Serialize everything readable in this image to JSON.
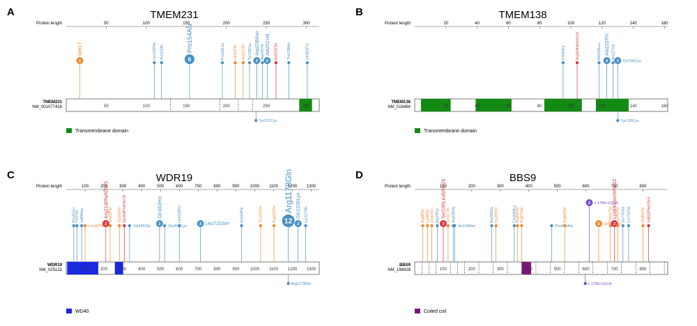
{
  "colors": {
    "missense": "#4a90c4",
    "truncating": "#f08a30",
    "frameshift": "#d9363e",
    "splice": "#7a4cc9",
    "transmembrane": "#138a13",
    "wd40": "#1a28e0",
    "coiled": "#7b1877"
  },
  "panels": [
    {
      "id": "A",
      "letter": "A",
      "title": "TMEM231",
      "axis_label": "Protein length",
      "gene": "TMEM231",
      "transcript": "NM_001077416",
      "length": 316,
      "ticks": [
        50,
        100,
        150,
        200,
        250,
        300
      ],
      "dividers": [
        130,
        192,
        215,
        233
      ],
      "domains": [
        {
          "start": 291,
          "end": 307,
          "type": "transmembrane"
        }
      ],
      "legend": "Transmembrane domain",
      "legend_type": "transmembrane",
      "top": [
        {
          "pos": 17,
          "label": "Met1?",
          "type": "truncating",
          "count": 2
        },
        {
          "pos": 110,
          "label": "Leu110Phe",
          "type": "missense"
        },
        {
          "pos": 119,
          "label": "Asn119Ile",
          "type": "missense"
        },
        {
          "pos": 154,
          "label": "Pro154Ala",
          "type": "missense",
          "count": 6
        },
        {
          "pos": 195,
          "label": "Pro195Leu",
          "type": "missense"
        },
        {
          "pos": 211,
          "label": "Gln211Ter",
          "type": "truncating"
        },
        {
          "pos": 221,
          "label": "Arg221Ter",
          "type": "truncating"
        },
        {
          "pos": 229,
          "label": "Tyr229Cys",
          "type": "missense"
        },
        {
          "pos": 238,
          "label": "Asp238Asn",
          "type": "missense",
          "count": 3
        },
        {
          "pos": 245,
          "label": "Ala245Thr",
          "type": "missense"
        },
        {
          "pos": 251,
          "label": "Ala251Val",
          "type": "missense",
          "count": 2
        },
        {
          "pos": 262,
          "label": "Ile262fsTer",
          "type": "frameshift"
        },
        {
          "pos": 278,
          "label": "Thr278Met",
          "type": "missense"
        },
        {
          "pos": 301,
          "label": "Gln301Pro",
          "type": "missense"
        }
      ],
      "bottom": [
        {
          "pos": 237,
          "label": "Tyr237Cys",
          "type": "missense"
        }
      ]
    },
    {
      "id": "B",
      "letter": "B",
      "title": "TMEM138",
      "axis_label": "Protein length",
      "gene": "TMEM138",
      "transcript": "NM_016464",
      "length": 162,
      "ticks": [
        20,
        40,
        60,
        80,
        100,
        120,
        140,
        160
      ],
      "dividers": [],
      "domains": [
        {
          "start": 4,
          "end": 23,
          "type": "transmembrane"
        },
        {
          "start": 39,
          "end": 62,
          "type": "transmembrane"
        },
        {
          "start": 83,
          "end": 107,
          "type": "transmembrane"
        },
        {
          "start": 116,
          "end": 137,
          "type": "transmembrane"
        }
      ],
      "legend": "Transmembrane domain",
      "legend_type": "transmembrane",
      "top": [
        {
          "pos": 95,
          "label": "His96Arg",
          "type": "missense"
        },
        {
          "pos": 104,
          "label": "Arg104HisfsTer23",
          "type": "frameshift"
        },
        {
          "pos": 118,
          "label": "Met118Leu",
          "type": "missense"
        },
        {
          "pos": 123,
          "label": "Ala123Thr",
          "type": "missense",
          "count": 3
        },
        {
          "pos": 127,
          "label": "Ala127Val",
          "type": "missense"
        },
        {
          "pos": 130,
          "label": "Tyr130Cys",
          "type": "missense",
          "count": 2,
          "side": true
        }
      ],
      "bottom": [
        {
          "pos": 130,
          "label": "Tyr130Cys",
          "type": "missense"
        }
      ]
    },
    {
      "id": "C",
      "letter": "C",
      "title": "WDR19",
      "axis_label": "Protein length",
      "gene": "WDR19",
      "transcript": "NM_025132",
      "length": 1342,
      "ticks": [
        100,
        200,
        300,
        400,
        500,
        600,
        700,
        800,
        900,
        1000,
        1100,
        1200,
        1300
      ],
      "dividers": [],
      "domains": [
        {
          "start": 5,
          "end": 170,
          "type": "wd40"
        },
        {
          "start": 258,
          "end": 302,
          "type": "wd40"
        }
      ],
      "legend": "WD40",
      "legend_type": "wd40",
      "top": [
        {
          "pos": 40,
          "label": "Phe45Ser",
          "type": "missense"
        },
        {
          "pos": 57,
          "label": "Thr57Ile",
          "type": "missense"
        },
        {
          "pos": 82,
          "label": "Val88Asp",
          "type": "missense"
        },
        {
          "pos": 100,
          "label": "Leu82Ter",
          "type": "truncating",
          "side": true
        },
        {
          "pos": 210,
          "label": "Arg214PhefsTer5",
          "type": "frameshift",
          "count": 2
        },
        {
          "pos": 233,
          "label": "Gln233Ter",
          "type": "truncating"
        },
        {
          "pos": 282,
          "label": "Glu282Ter",
          "type": "truncating"
        },
        {
          "pos": 308,
          "label": "Ser308ProfsTer16",
          "type": "frameshift"
        },
        {
          "pos": 336,
          "label": "Val345Gly",
          "type": "missense",
          "side": true
        },
        {
          "pos": 495,
          "label": "Gln493His",
          "type": "missense",
          "count": 2
        },
        {
          "pos": 522,
          "label": "Gly495Cys",
          "type": "missense",
          "side": true
        },
        {
          "pos": 600,
          "label": "Leu619Pro",
          "type": "missense"
        },
        {
          "pos": 712,
          "label": "Leu710Ser",
          "type": "missense",
          "count": 3,
          "side": true
        },
        {
          "pos": 930,
          "label": "Ile935Phe",
          "type": "missense"
        },
        {
          "pos": 1031,
          "label": "Tyr1031Ter",
          "type": "truncating"
        },
        {
          "pos": 1102,
          "label": "Arg1102Ter",
          "type": "truncating"
        },
        {
          "pos": 1178,
          "label": "Arg1178Gln",
          "type": "missense",
          "count": 12
        },
        {
          "pos": 1230,
          "label": "Gln1235Lys",
          "type": "missense",
          "count": 2
        },
        {
          "pos": 1270,
          "label": "Lys1270Ile",
          "type": "missense"
        }
      ],
      "bottom": [
        {
          "pos": 1178,
          "label": "Arg1178Gln",
          "type": "missense"
        }
      ]
    },
    {
      "id": "D",
      "letter": "D",
      "title": "BBS9",
      "axis_label": "Protein length",
      "gene": "BBS9",
      "transcript": "NM_198428",
      "length": 887,
      "ticks": [
        100,
        200,
        300,
        400,
        500,
        600,
        700,
        800
      ],
      "dividers": [
        25,
        50,
        75,
        125,
        150,
        175,
        225,
        275,
        325,
        375,
        425,
        475,
        525,
        575,
        625,
        675,
        725,
        775,
        825,
        875
      ],
      "domains": [
        {
          "start": 375,
          "end": 408,
          "type": "coiled"
        }
      ],
      "legend": "Coiled coil",
      "legend_type": "coiled",
      "top": [
        {
          "pos": 28,
          "label": "Arg28Ter",
          "type": "truncating"
        },
        {
          "pos": 45,
          "label": "Lys45Ter",
          "type": "truncating"
        },
        {
          "pos": 60,
          "label": "Gln60Ter",
          "type": "truncating"
        },
        {
          "pos": 79,
          "label": "Asp79Tyr",
          "type": "missense"
        },
        {
          "pos": 100,
          "label": "Ser100LeufsTer24",
          "type": "frameshift",
          "count": 3
        },
        {
          "pos": 117,
          "label": "Ser117Ter",
          "type": "truncating"
        },
        {
          "pos": 135,
          "label": "Arg135Gly",
          "type": "missense"
        },
        {
          "pos": 140,
          "label": "Ile134Met",
          "type": "missense",
          "side": true
        },
        {
          "pos": 270,
          "label": "Ala260Gly",
          "type": "missense"
        },
        {
          "pos": 285,
          "label": "Glu285Ter",
          "type": "truncating"
        },
        {
          "pos": 349,
          "label": "Cys349Arg",
          "type": "missense"
        },
        {
          "pos": 360,
          "label": "Arg360Ter",
          "type": "truncating"
        },
        {
          "pos": 375,
          "label": "Arg375Ter",
          "type": "truncating"
        },
        {
          "pos": 480,
          "label": "Pro416Ala",
          "type": "missense",
          "side": true
        },
        {
          "pos": 526,
          "label": "Arg526Ter",
          "type": "truncating"
        },
        {
          "pos": 612,
          "label": "c.1789+1G>A",
          "type": "splice",
          "count": 2,
          "side": true,
          "offset": -30
        },
        {
          "pos": 645,
          "label": "Gln597Ter",
          "type": "truncating",
          "count": 2,
          "side": true
        },
        {
          "pos": 686,
          "label": "Phe687Ter",
          "type": "truncating"
        },
        {
          "pos": 700,
          "label": "Lys690AsnfsTer22",
          "type": "frameshift",
          "count": 2
        },
        {
          "pos": 712,
          "label": "Lys713Ter",
          "type": "truncating"
        },
        {
          "pos": 730,
          "label": "Ser730Val",
          "type": "missense"
        },
        {
          "pos": 750,
          "label": "Leu752Val",
          "type": "missense"
        },
        {
          "pos": 800,
          "label": "Gln800Ter",
          "type": "truncating"
        },
        {
          "pos": 820,
          "label": "Val812PhefsTer6",
          "type": "frameshift"
        }
      ],
      "bottom": [
        {
          "pos": 598,
          "label": "c.1789+1G>A",
          "type": "splice"
        }
      ]
    }
  ]
}
